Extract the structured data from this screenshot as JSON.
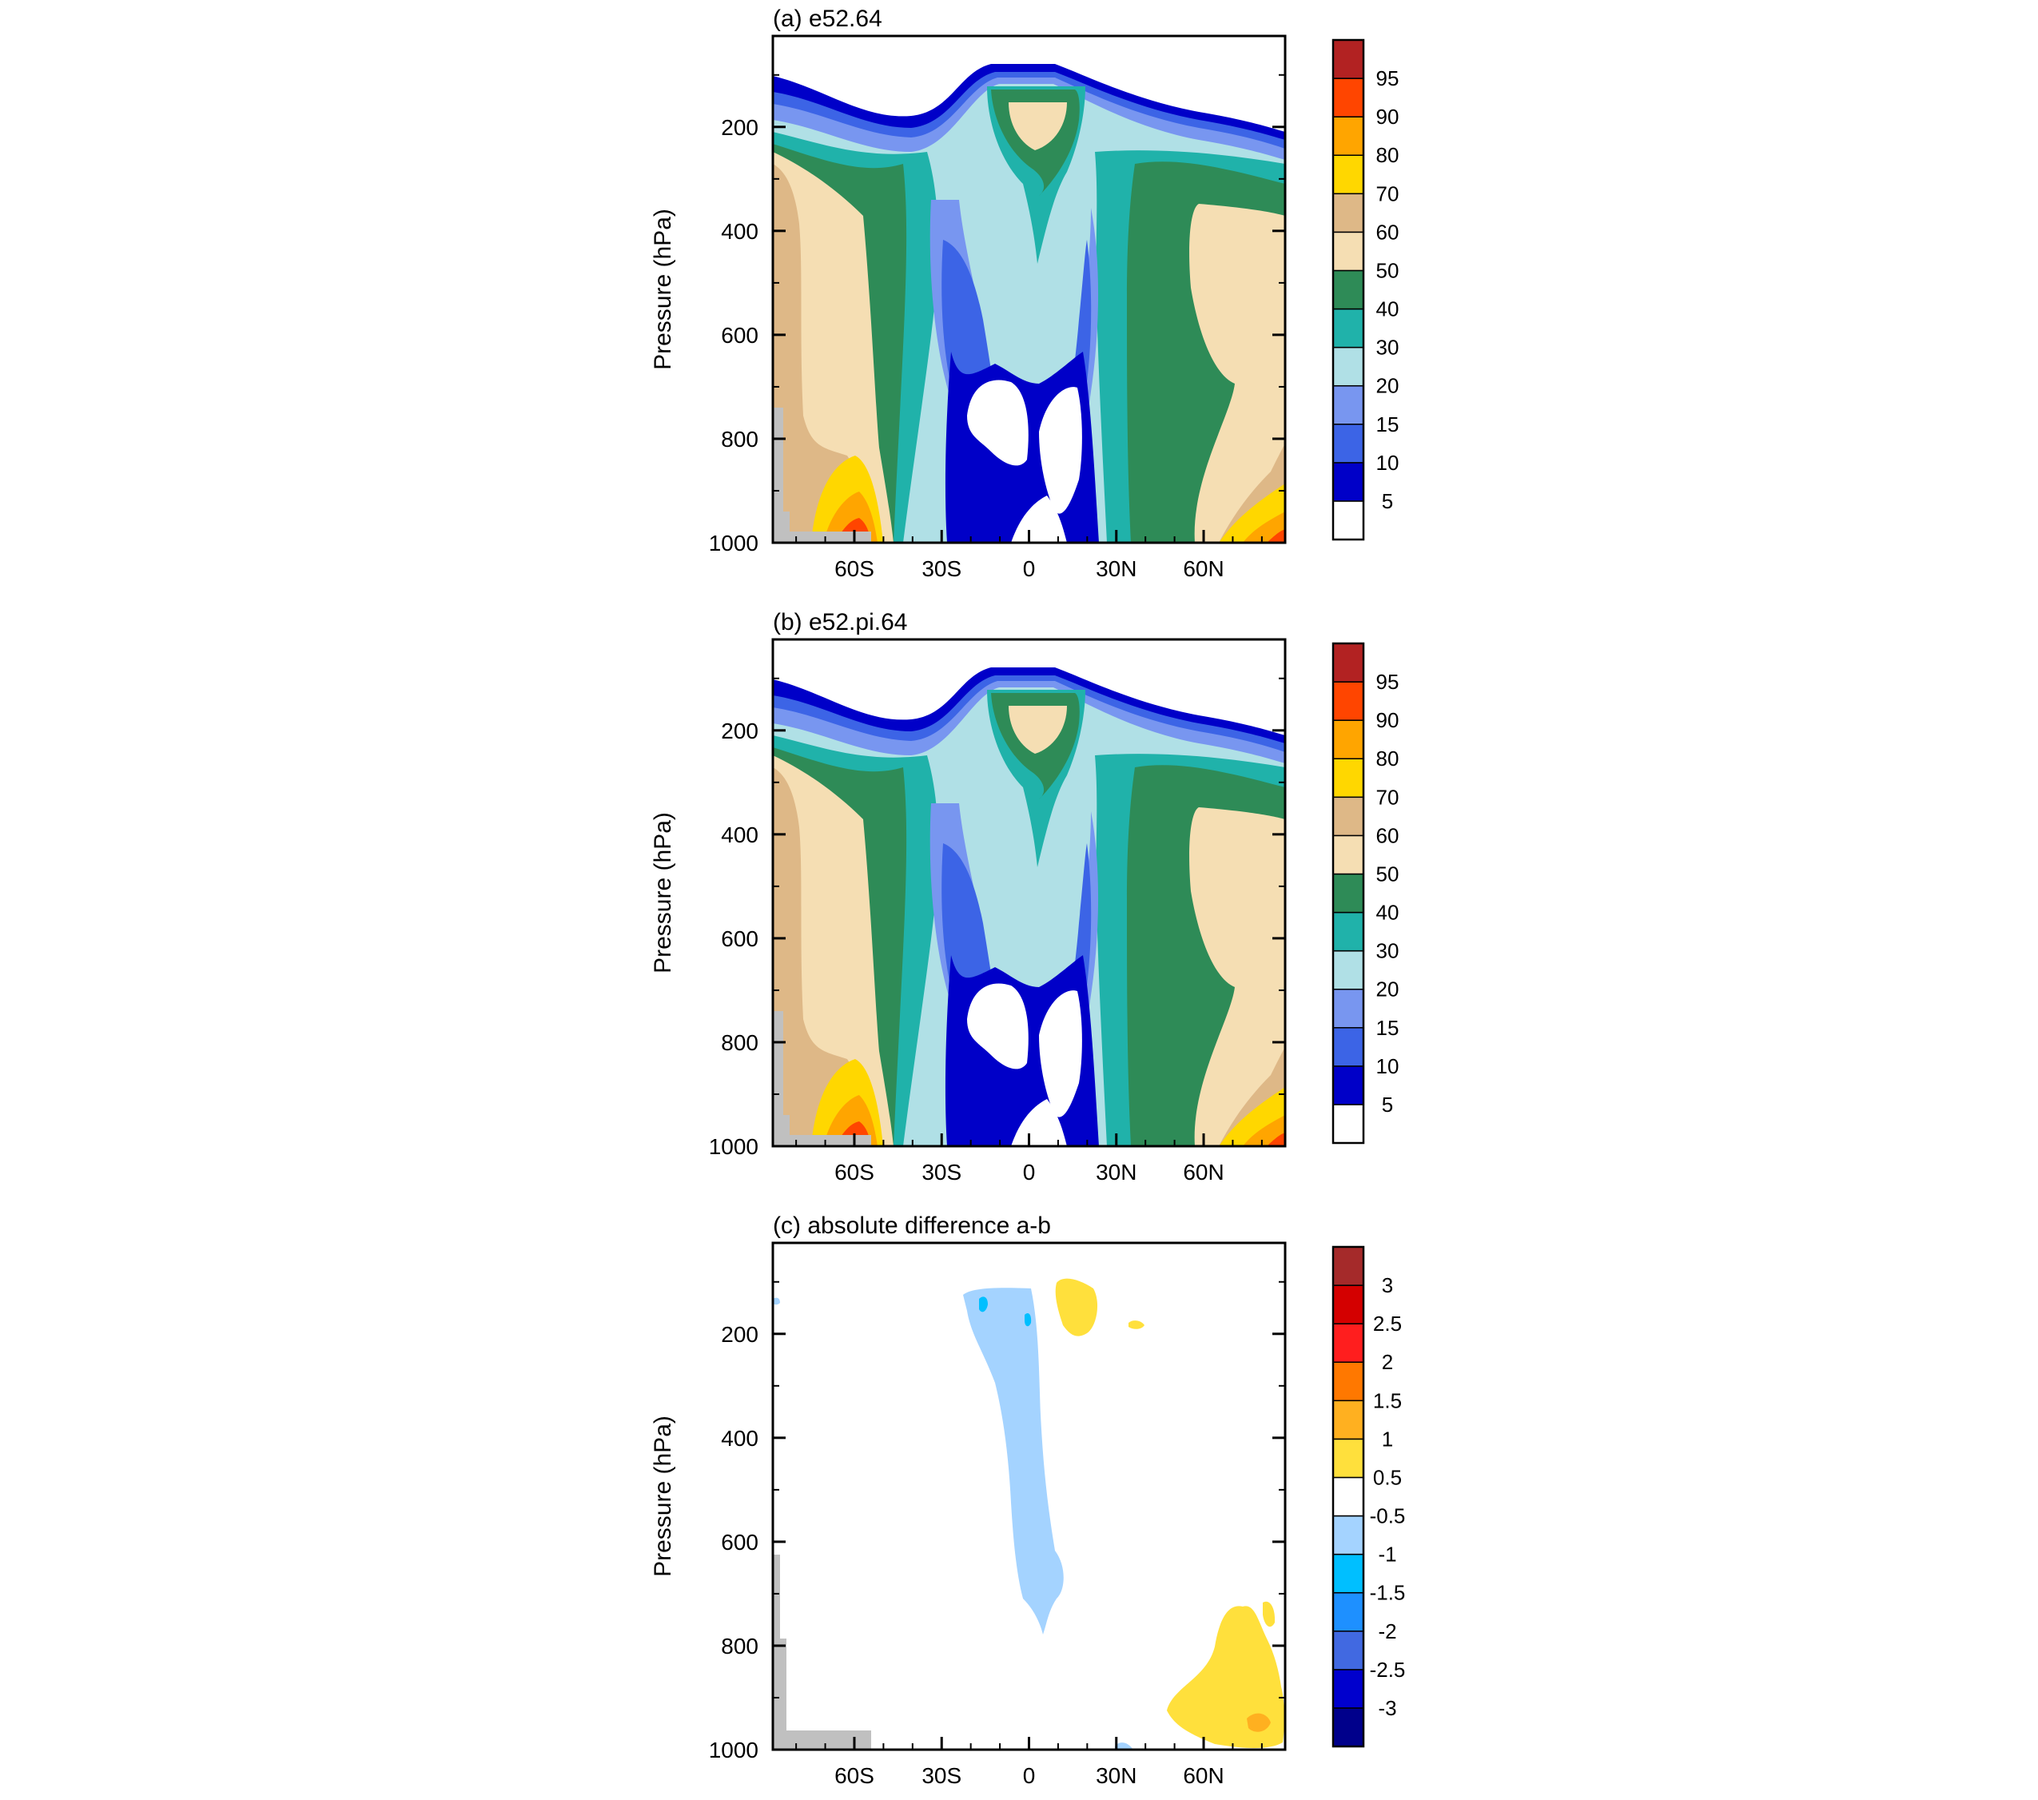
{
  "chart_data": [
    {
      "type": "contour",
      "title": "(a) e52.64",
      "ylabel": "Pressure (hPa)",
      "xticks": [
        "60S",
        "30S",
        "0",
        "30N",
        "60N"
      ],
      "xtick_values": [
        -60,
        -30,
        0,
        30,
        60
      ],
      "xlim": [
        -88,
        88
      ],
      "yticks": [
        "200",
        "400",
        "600",
        "800",
        "1000"
      ],
      "ytick_values": [
        200,
        400,
        600,
        800,
        1000
      ],
      "ylim": [
        1000,
        25
      ],
      "colorbar": {
        "levels": [
          "5",
          "10",
          "15",
          "20",
          "30",
          "40",
          "50",
          "60",
          "70",
          "80",
          "90",
          "95"
        ],
        "colors": [
          "#ffffff",
          "#0000c8",
          "#3c64e6",
          "#7896f0",
          "#b0e0e6",
          "#20b2aa",
          "#2e8b57",
          "#f5deb3",
          "#deb887",
          "#ffd700",
          "#ffa500",
          "#ff4500",
          "#b22222"
        ]
      }
    },
    {
      "type": "contour",
      "title": "(b) e52.pi.64",
      "ylabel": "Pressure (hPa)",
      "xticks": [
        "60S",
        "30S",
        "0",
        "30N",
        "60N"
      ],
      "xtick_values": [
        -60,
        -30,
        0,
        30,
        60
      ],
      "xlim": [
        -88,
        88
      ],
      "yticks": [
        "200",
        "400",
        "600",
        "800",
        "1000"
      ],
      "ytick_values": [
        200,
        400,
        600,
        800,
        1000
      ],
      "ylim": [
        1000,
        25
      ],
      "colorbar": {
        "levels": [
          "5",
          "10",
          "15",
          "20",
          "30",
          "40",
          "50",
          "60",
          "70",
          "80",
          "90",
          "95"
        ],
        "colors": [
          "#ffffff",
          "#0000c8",
          "#3c64e6",
          "#7896f0",
          "#b0e0e6",
          "#20b2aa",
          "#2e8b57",
          "#f5deb3",
          "#deb887",
          "#ffd700",
          "#ffa500",
          "#ff4500",
          "#b22222"
        ]
      }
    },
    {
      "type": "contour",
      "title": "(c) absolute difference a-b",
      "ylabel": "Pressure (hPa)",
      "xticks": [
        "60S",
        "30S",
        "0",
        "30N",
        "60N"
      ],
      "xtick_values": [
        -60,
        -30,
        0,
        30,
        60
      ],
      "xlim": [
        -88,
        88
      ],
      "yticks": [
        "200",
        "400",
        "600",
        "800",
        "1000"
      ],
      "ytick_values": [
        200,
        400,
        600,
        800,
        1000
      ],
      "ylim": [
        1000,
        25
      ],
      "colorbar": {
        "levels": [
          "-3",
          "-2.5",
          "-2",
          "-1.5",
          "-1",
          "-0.5",
          "0.5",
          "1",
          "1.5",
          "2",
          "2.5",
          "3"
        ],
        "colors": [
          "#00008b",
          "#0000cd",
          "#4169e1",
          "#1e90ff",
          "#00bfff",
          "#a4d3ff",
          "#ffffff",
          "#ffe03c",
          "#ffb020",
          "#ff7800",
          "#ff1e1e",
          "#d40000",
          "#a52a2a"
        ]
      }
    }
  ]
}
